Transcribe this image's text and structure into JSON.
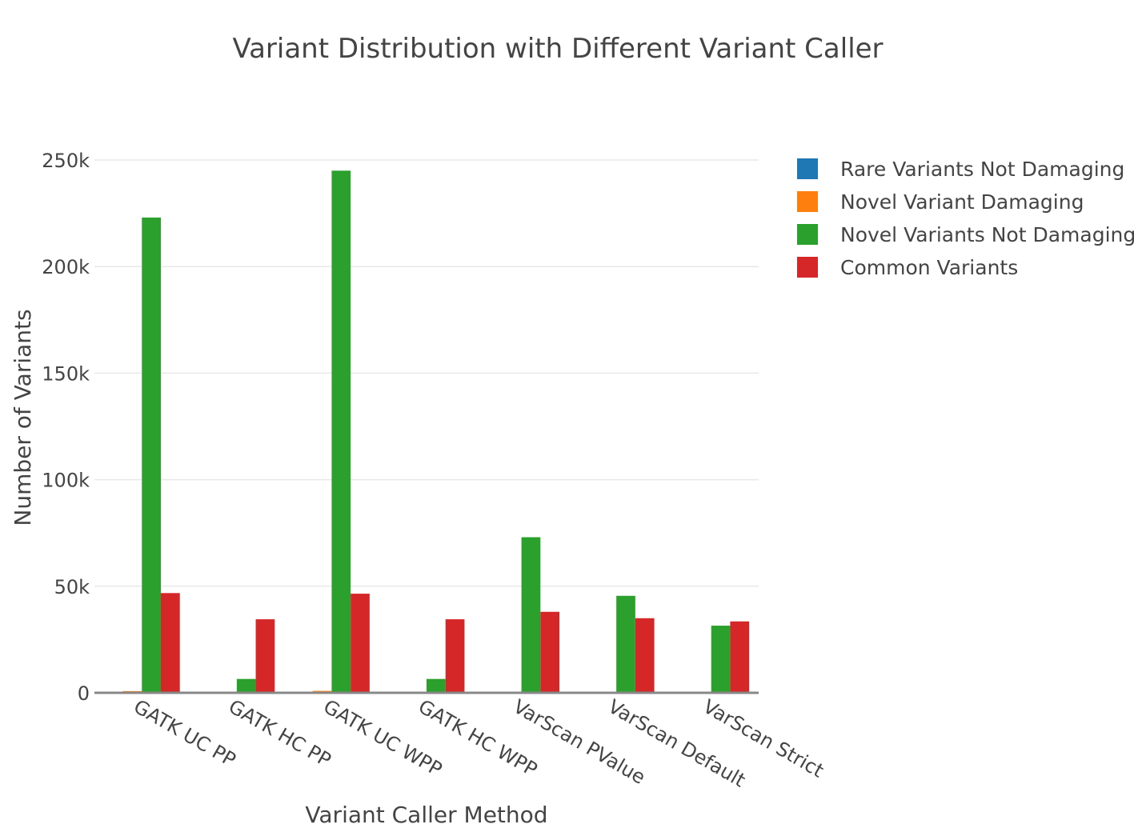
{
  "chart_data": {
    "type": "bar",
    "title": "Variant Distribution with Different Variant Caller",
    "xlabel": "Variant Caller Method",
    "ylabel": "Number of Variants",
    "categories": [
      "GATK UC PP",
      "GATK HC PP",
      "GATK UC WPP",
      "GATK HC WPP",
      "VarScan PValue",
      "VarScan Default",
      "VarScan Strict"
    ],
    "y_ticks": [
      {
        "value": 0,
        "label": "0"
      },
      {
        "value": 50000,
        "label": "50k"
      },
      {
        "value": 100000,
        "label": "100k"
      },
      {
        "value": 150000,
        "label": "150k"
      },
      {
        "value": 200000,
        "label": "200k"
      },
      {
        "value": 250000,
        "label": "250k"
      }
    ],
    "ylim": [
      0,
      250000
    ],
    "grid": true,
    "legend_position": "top-right",
    "series": [
      {
        "name": "Rare Variants Not Damaging",
        "color": "#1f77b4",
        "values": [
          0,
          0,
          0,
          0,
          0,
          0,
          0
        ]
      },
      {
        "name": "Novel Variant Damaging",
        "color": "#ff7f0e",
        "values": [
          800,
          0,
          900,
          0,
          300,
          0,
          0
        ]
      },
      {
        "name": "Novel Variants Not Damaging",
        "color": "#2ca02c",
        "values": [
          223000,
          6500,
          245000,
          6500,
          73000,
          45500,
          31500
        ]
      },
      {
        "name": "Common Variants",
        "color": "#d62728",
        "values": [
          46800,
          34500,
          46500,
          34500,
          38000,
          35000,
          33500
        ]
      }
    ]
  }
}
